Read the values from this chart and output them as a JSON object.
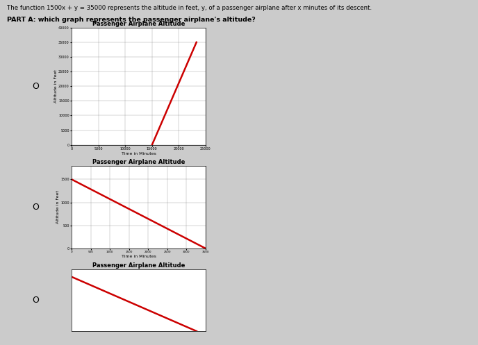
{
  "header_text": "The function 1500x + y = 35000 represents the altitude in feet, y, of a passenger airplane after x minutes of its descent.",
  "part_a_text": "PART A: which graph represents the passenger airplane's altitude?",
  "background_color": "#cbcbcb",
  "graph1": {
    "title": "Passenger Airplane Altitude",
    "xlabel": "Time in Minutes",
    "ylabel": "Altitude in Feet",
    "xlim": [
      0,
      25000
    ],
    "ylim": [
      0,
      40000
    ],
    "xticks": [
      0,
      5000,
      10000,
      15000,
      20000,
      25000
    ],
    "yticks": [
      0,
      5000,
      10000,
      15000,
      20000,
      25000,
      30000,
      35000,
      40000
    ],
    "line_x": [
      15000,
      23300
    ],
    "line_y": [
      0,
      35000
    ],
    "line_color": "#cc0000",
    "line_width": 1.8
  },
  "graph2": {
    "title": "Passenger Airplane Altitude",
    "xlabel": "Time in Minutes",
    "ylabel": "Altitude in Feet",
    "xlim": [
      0,
      3500
    ],
    "ylim": [
      0,
      1800
    ],
    "xticks": [
      0,
      500,
      1000,
      1500,
      2000,
      2500,
      3000,
      3500
    ],
    "yticks": [
      0,
      500,
      1000,
      1500
    ],
    "line_x": [
      0,
      3500
    ],
    "line_y": [
      1500,
      0
    ],
    "line_color": "#cc0000",
    "line_width": 1.8
  },
  "graph3": {
    "title": "Passenger Airplane Altitude",
    "xlabel": "",
    "ylabel": "",
    "xlim": [
      0,
      25
    ],
    "ylim": [
      0,
      40000
    ],
    "line_x": [
      0,
      23.33
    ],
    "line_y": [
      35000,
      0
    ],
    "line_color": "#cc0000",
    "line_width": 1.8
  },
  "option_labels": [
    "O",
    "O",
    "O"
  ]
}
